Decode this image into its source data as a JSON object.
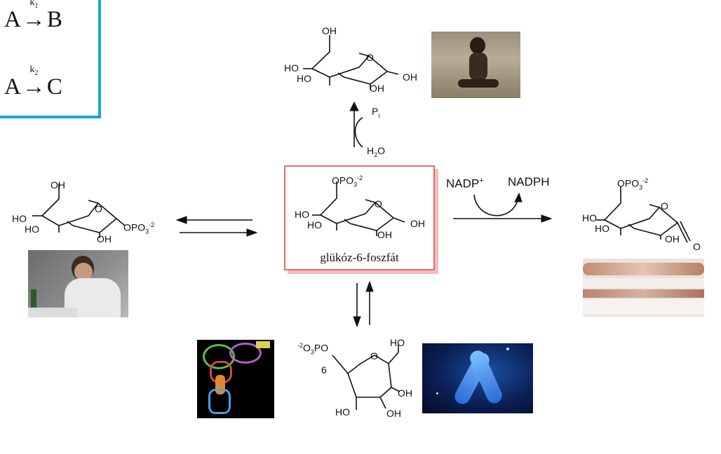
{
  "kinetics": {
    "line1": {
      "reactant": "A",
      "rate": "k",
      "rate_sub": "1",
      "product": "B"
    },
    "line2": {
      "reactant": "A",
      "rate": "k",
      "rate_sub": "2",
      "product": "C"
    }
  },
  "center": {
    "label": "glükóz-6-foszfát",
    "phosphate": {
      "main": "OPO",
      "sub": "3",
      "sup": "-2"
    }
  },
  "top_reaction": {
    "product_pi": {
      "main": "P",
      "sub": "i"
    },
    "water": {
      "main": "H",
      "sub": "2",
      "tail": "O"
    }
  },
  "right_reaction": {
    "cofactor_in": {
      "main": "NADP",
      "sup": "+"
    },
    "cofactor_out": "NADPH"
  },
  "left_molecule": {
    "phosphate": {
      "main": "OPO",
      "sub": "3",
      "sup": "-2"
    }
  },
  "right_molecule": {
    "phosphate": {
      "main": "OPO",
      "sub": "3",
      "sup": "-2"
    },
    "carbonyl_o": "O"
  },
  "bottom_molecule": {
    "phosphate": {
      "sup": "-2",
      "main_a": "O",
      "sub": "3",
      "main_b": "PO"
    },
    "carbon_number": "6"
  },
  "atoms": {
    "oh": "OH",
    "ho": "HO",
    "o": "O"
  },
  "colors": {
    "kinetics_border": "#1da1e2",
    "center_border": "#e36b6b",
    "center_shadow": "#f2bcbc"
  }
}
